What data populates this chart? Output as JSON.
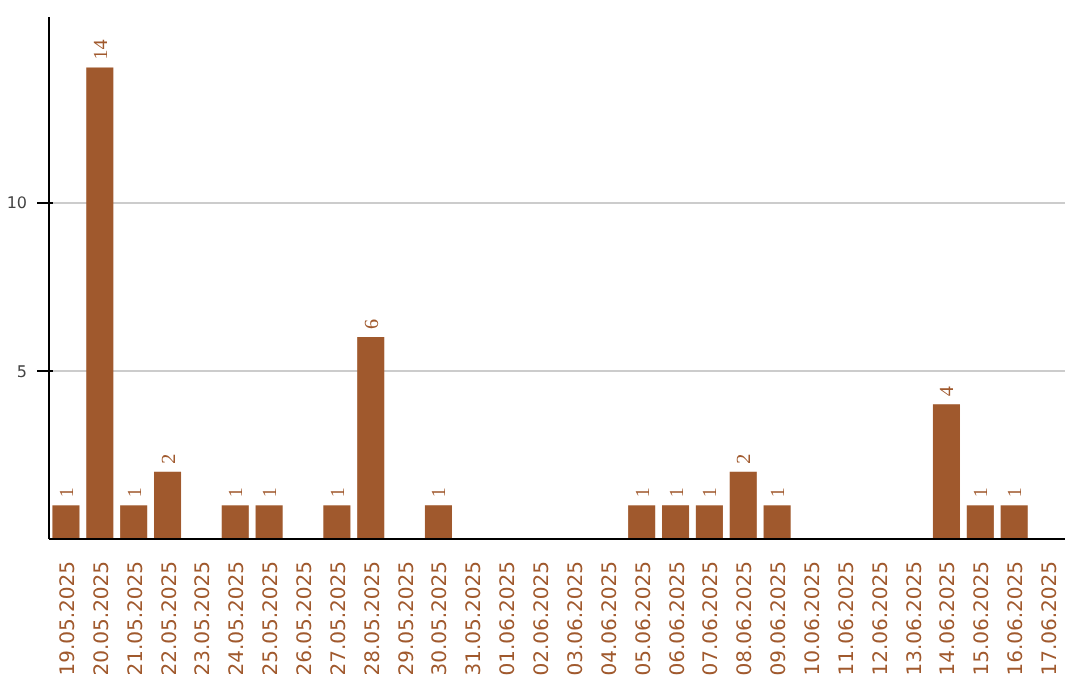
{
  "chart_data": {
    "type": "bar",
    "categories": [
      "19.05.2025",
      "20.05.2025",
      "21.05.2025",
      "22.05.2025",
      "23.05.2025",
      "24.05.2025",
      "25.05.2025",
      "26.05.2025",
      "27.05.2025",
      "28.05.2025",
      "29.05.2025",
      "30.05.2025",
      "31.05.2025",
      "01.06.2025",
      "02.06.2025",
      "03.06.2025",
      "04.06.2025",
      "05.06.2025",
      "06.06.2025",
      "07.06.2025",
      "08.06.2025",
      "09.06.2025",
      "10.06.2025",
      "11.06.2025",
      "12.06.2025",
      "13.06.2025",
      "14.06.2025",
      "15.06.2025",
      "16.06.2025",
      "17.06.2025"
    ],
    "values": [
      1,
      14,
      1,
      2,
      0,
      1,
      1,
      0,
      1,
      6,
      0,
      1,
      0,
      0,
      0,
      0,
      0,
      1,
      1,
      1,
      2,
      1,
      0,
      0,
      0,
      0,
      4,
      1,
      1,
      0
    ],
    "value_labels": [
      "1",
      "14",
      "1",
      "2",
      null,
      "1",
      "1",
      null,
      "1",
      "6",
      null,
      "1",
      null,
      null,
      null,
      null,
      null,
      "1",
      "1",
      "1",
      "2",
      "1",
      null,
      null,
      null,
      null,
      "4",
      "1",
      "1",
      null
    ],
    "color": "#a0592d",
    "ylim": [
      0,
      15.5
    ],
    "yticks": [
      5,
      10
    ],
    "grid": "y"
  }
}
